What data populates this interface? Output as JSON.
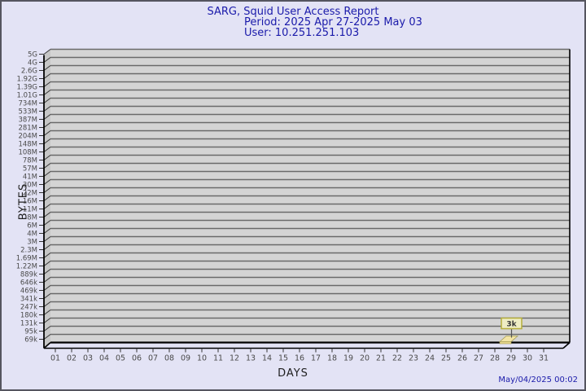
{
  "title": {
    "line1": "SARG, Squid User Access Report",
    "line2": "Period: 2025 Apr 27-2025 May 03",
    "line3": "User: 10.251.251.103"
  },
  "axes": {
    "y_label": "BYTES",
    "x_label": "DAYS"
  },
  "footer": {
    "timestamp": "May/04/2025 00:02"
  },
  "colors": {
    "page_bg": "#e3e3f5",
    "page_border": "#55555f",
    "title_text": "#1a1aaa",
    "plot_bg": "#d4d4d4",
    "wall": "#c6c6c6",
    "gridline": "#6a6a6a",
    "axis_line": "#000000",
    "tick_text": "#4a4a4a",
    "bar_fill": "#f2e4a4",
    "bar_side": "#e8d88e",
    "bar_stroke": "#a39a52",
    "note_bg": "#eeedc4",
    "note_border": "#b5ae3d",
    "note_text": "#333333"
  },
  "chart_data": {
    "type": "bar",
    "title": "SARG, Squid User Access Report",
    "subtitle": "Period: 2025 Apr 27-2025 May 03",
    "user": "User: 10.251.251.103",
    "xlabel": "DAYS",
    "ylabel": "BYTES",
    "y_scale": "log",
    "ylim": [
      "69k",
      "5G"
    ],
    "grid": true,
    "y_tick_labels_top_to_bottom": [
      "5G",
      "4G",
      "2.6G",
      "1.92G",
      "1.39G",
      "1.01G",
      "734M",
      "533M",
      "387M",
      "281M",
      "204M",
      "148M",
      "108M",
      "78M",
      "57M",
      "41M",
      "30M",
      "22M",
      "16M",
      "11M",
      "8M",
      "6M",
      "4M",
      "3M",
      "2.3M",
      "1.69M",
      "1.22M",
      "889k",
      "646k",
      "469k",
      "341k",
      "247k",
      "180k",
      "131k",
      "95k",
      "69k"
    ],
    "x_tick_labels": [
      "01",
      "02",
      "03",
      "04",
      "05",
      "06",
      "07",
      "08",
      "09",
      "10",
      "11",
      "12",
      "13",
      "14",
      "15",
      "16",
      "17",
      "18",
      "19",
      "20",
      "21",
      "22",
      "23",
      "24",
      "25",
      "26",
      "27",
      "28",
      "29",
      "30",
      "31"
    ],
    "x": [
      1,
      2,
      3,
      4,
      5,
      6,
      7,
      8,
      9,
      10,
      11,
      12,
      13,
      14,
      15,
      16,
      17,
      18,
      19,
      20,
      21,
      22,
      23,
      24,
      25,
      26,
      27,
      28,
      29,
      30,
      31
    ],
    "values": [
      0,
      0,
      0,
      0,
      0,
      0,
      0,
      0,
      0,
      0,
      0,
      0,
      0,
      0,
      0,
      0,
      0,
      0,
      0,
      0,
      0,
      0,
      0,
      0,
      0,
      0,
      0,
      0,
      3000,
      0,
      0
    ],
    "annotations": [
      {
        "day": 29,
        "label": "3k",
        "value_bytes": 3000
      }
    ]
  }
}
